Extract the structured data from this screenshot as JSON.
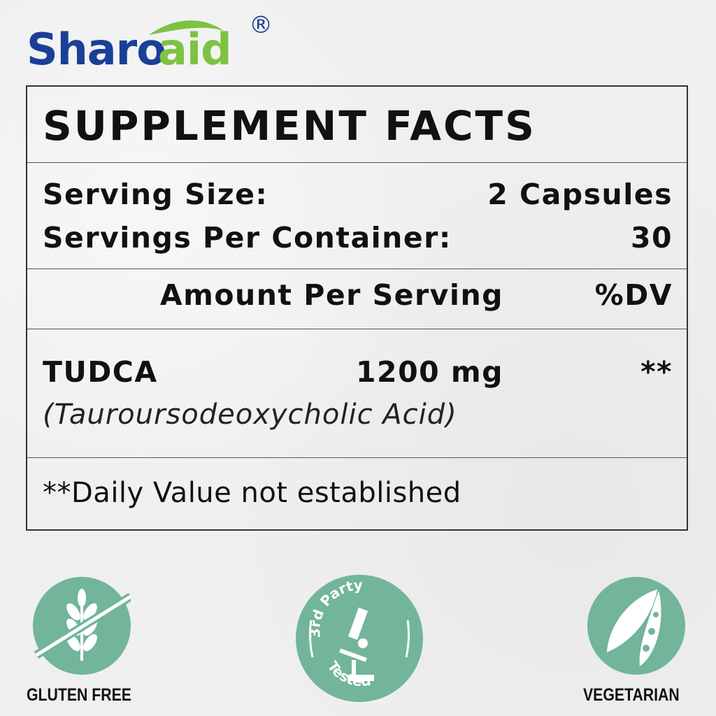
{
  "brand": {
    "name_part1": "Sharo",
    "name_part2": "aid",
    "registered": "®",
    "color_blue": "#1a3f97",
    "color_green": "#7dc242"
  },
  "facts": {
    "title": "SUPPLEMENT FACTS",
    "serving_size_label": "Serving Size:",
    "serving_size_value": "2 Capsules",
    "servings_label": "Servings Per Container:",
    "servings_value": "30",
    "amount_header": "Amount Per Serving",
    "dv_header": "%DV",
    "ingredient": {
      "name": "TUDCA",
      "amount": "1200 mg",
      "dv": "**",
      "full_name": "(Tauroursodeoxycholic Acid)"
    },
    "footnote": "**Daily Value not established"
  },
  "badges": [
    {
      "icon": "wheat-crossed-icon",
      "label": "GLUTEN FREE"
    },
    {
      "icon": "microscope-icon",
      "top_text": "3rd Party",
      "bottom_text": "Tested"
    },
    {
      "icon": "leaf-pea-pod-icon",
      "label": "VEGETARIAN"
    }
  ],
  "badge_color": "#72b59a"
}
